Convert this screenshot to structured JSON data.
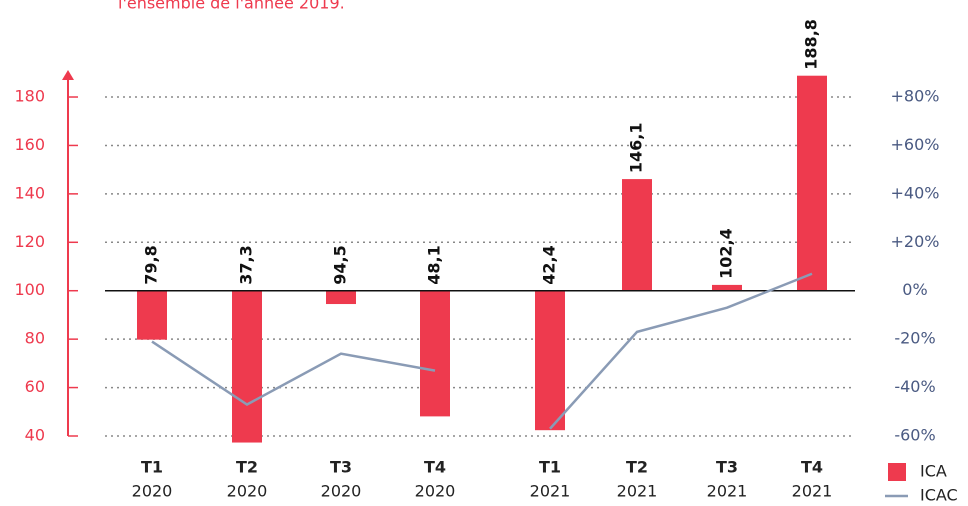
{
  "chart_data": {
    "type": "bar",
    "title": "l'ensemble de l'année 2019.",
    "categories": [
      {
        "quarter": "T1",
        "year": "2020"
      },
      {
        "quarter": "T2",
        "year": "2020"
      },
      {
        "quarter": "T3",
        "year": "2020"
      },
      {
        "quarter": "T4",
        "year": "2020"
      },
      {
        "quarter": "T1",
        "year": "2021"
      },
      {
        "quarter": "T2",
        "year": "2021"
      },
      {
        "quarter": "T3",
        "year": "2021"
      },
      {
        "quarter": "T4",
        "year": "2021"
      }
    ],
    "series": [
      {
        "name": "ICA",
        "type": "bar",
        "color": "#ee3a4e",
        "base": 100,
        "values": [
          79.8,
          37.3,
          94.5,
          48.1,
          42.4,
          146.1,
          102.4,
          188.8
        ],
        "value_labels": [
          "79,8",
          "37,3",
          "94,5",
          "48,1",
          "42,4",
          "146,1",
          "102,4",
          "188,8"
        ]
      },
      {
        "name": "ICAC",
        "type": "line",
        "color": "#8a9bb5",
        "axis": "y2",
        "values": [
          -21,
          -47,
          -26,
          -33,
          -57,
          -17,
          -7,
          7
        ]
      }
    ],
    "ylim": [
      40,
      190
    ],
    "yticks": [
      40,
      60,
      80,
      100,
      120,
      140,
      160,
      180
    ],
    "y2lim": [
      -60,
      90
    ],
    "y2ticks": [
      {
        "value": -60,
        "label": "-60%"
      },
      {
        "value": -40,
        "label": "-40%"
      },
      {
        "value": -20,
        "label": "-20%"
      },
      {
        "value": 0,
        "label": "0%"
      },
      {
        "value": 20,
        "label": "+20%"
      },
      {
        "value": 40,
        "label": "+40%"
      },
      {
        "value": 60,
        "label": "+60%"
      },
      {
        "value": 80,
        "label": "+80%"
      }
    ],
    "grid": true,
    "legend": "bottom-right"
  }
}
